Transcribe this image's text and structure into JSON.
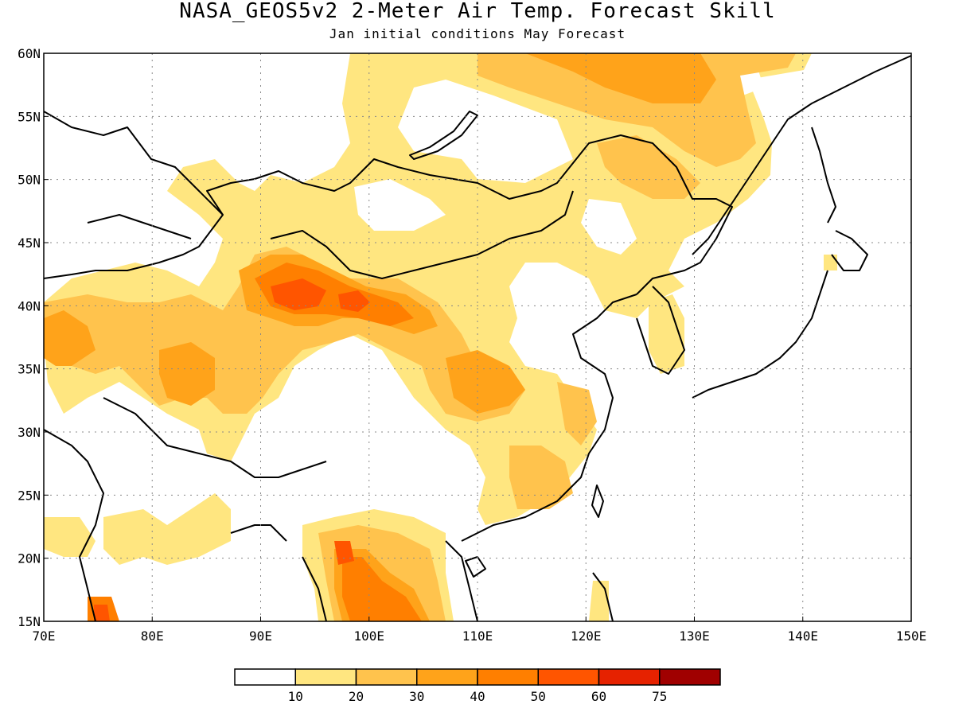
{
  "title": "NASA_GEOS5v2 2-Meter Air Temp. Forecast Skill",
  "subtitle": "Jan initial conditions  May Forecast",
  "map": {
    "lon_range": [
      70,
      150
    ],
    "lat_range": [
      15,
      60
    ],
    "lon_ticks": [
      "70E",
      "80E",
      "90E",
      "100E",
      "110E",
      "120E",
      "130E",
      "140E",
      "150E"
    ],
    "lat_ticks": [
      "15N",
      "20N",
      "25N",
      "30N",
      "35N",
      "40N",
      "45N",
      "50N",
      "55N",
      "60N"
    ],
    "gridlines": true,
    "colors": [
      "#ffffff",
      "#ffe680",
      "#ffc34d",
      "#ffa31a",
      "#ff7f00",
      "#ff5500",
      "#e62200",
      "#a00000"
    ]
  },
  "colorbar": {
    "labels": [
      "10",
      "20",
      "30",
      "40",
      "50",
      "60",
      "75"
    ]
  }
}
